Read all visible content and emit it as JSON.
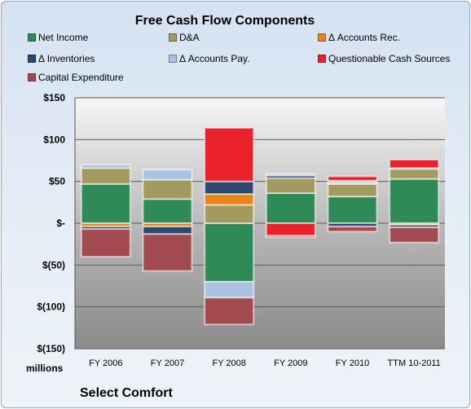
{
  "chart_data": {
    "type": "bar",
    "stacked": true,
    "title": "Free Cash Flow Components",
    "units_label": "millions",
    "company": "Select Comfort",
    "categories": [
      "FY 2006",
      "FY 2007",
      "FY 2008",
      "FY 2009",
      "FY 2010",
      "TTM 10-2011"
    ],
    "y_ticks": [
      "$150",
      "$100",
      "$50",
      "$-",
      "$(50)",
      "$(100)",
      "$(150)"
    ],
    "ylim": [
      -150,
      150
    ],
    "grid": true,
    "legend_position": "top",
    "series": [
      {
        "name": "Net Income",
        "color": "#2e8b57",
        "values": [
          47,
          29,
          -70,
          36,
          32,
          53
        ]
      },
      {
        "name": "D&A",
        "color": "#a39a60",
        "values": [
          19,
          23,
          22,
          18,
          15,
          12
        ]
      },
      {
        "name": "Δ Accounts Rec.",
        "color": "#e8841a",
        "values": [
          -4,
          -4,
          13,
          0,
          1,
          -2
        ]
      },
      {
        "name": "Δ Inventories",
        "color": "#2c4770",
        "values": [
          -3,
          -9,
          15,
          3,
          -4,
          -3
        ]
      },
      {
        "name": "Δ Accounts Pay.",
        "color": "#a9c2e2",
        "values": [
          4,
          12,
          -19,
          2,
          3,
          1
        ]
      },
      {
        "name": "Questionable Cash Sources",
        "color": "#e8212a",
        "values": [
          0,
          0,
          64,
          -15,
          5,
          10
        ]
      },
      {
        "name": "Capital Expenditure",
        "color": "#a14b50",
        "values": [
          -33,
          -44,
          -32,
          -2,
          -6,
          -18
        ]
      }
    ]
  }
}
